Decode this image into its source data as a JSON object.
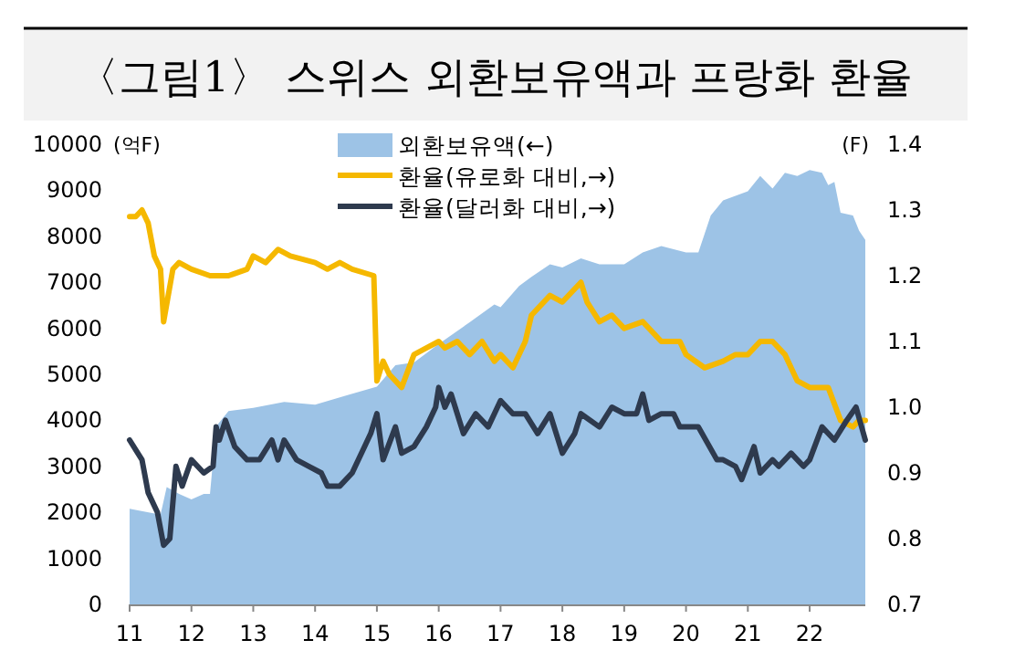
{
  "chart_data": {
    "type": "area",
    "title": "〈그림1〉 스위스 외환보유액과 프랑화 환율",
    "ylabel": "(억F)",
    "y2label": "(F)",
    "xlim": [
      11,
      22.9
    ],
    "xticks": [
      11,
      12,
      13,
      14,
      15,
      16,
      17,
      18,
      19,
      20,
      21,
      22
    ],
    "ylim": [
      0,
      10000
    ],
    "yticks": [
      0,
      1000,
      2000,
      3000,
      4000,
      5000,
      6000,
      7000,
      8000,
      9000,
      10000
    ],
    "y2lim": [
      0.7,
      1.4
    ],
    "y2ticks": [
      0.7,
      0.8,
      0.9,
      {
        "value": 1.0,
        "label": "1.0"
      },
      1.1,
      1.2,
      1.3,
      1.4
    ],
    "legend": "top",
    "grid": false,
    "series": [
      {
        "name": "외환보유액(←)",
        "color": "#9dc3e6",
        "x": [
          11.0,
          11.5,
          11.6,
          11.8,
          12.0,
          12.2,
          12.3,
          12.4,
          12.6,
          13.0,
          13.5,
          14.0,
          14.5,
          15.0,
          15.3,
          15.6,
          16.0,
          16.5,
          16.9,
          17.0,
          17.3,
          17.5,
          17.8,
          18.0,
          18.3,
          18.6,
          19.0,
          19.3,
          19.6,
          20.0,
          20.2,
          20.4,
          20.6,
          21.0,
          21.2,
          21.4,
          21.6,
          21.8,
          22.0,
          22.2,
          22.3,
          22.4,
          22.5,
          22.7,
          22.8,
          22.9
        ],
        "values": [
          2080,
          1950,
          2550,
          2400,
          2280,
          2400,
          2400,
          3870,
          4200,
          4270,
          4400,
          4340,
          4540,
          4730,
          5200,
          5260,
          5660,
          6130,
          6520,
          6460,
          6920,
          7120,
          7390,
          7320,
          7520,
          7390,
          7390,
          7650,
          7790,
          7650,
          7650,
          8450,
          8780,
          8980,
          9310,
          9040,
          9380,
          9310,
          9440,
          9380,
          9110,
          9180,
          8510,
          8450,
          8120,
          7920
        ]
      },
      {
        "name": "환율(유로화 대비,→)",
        "type": "line",
        "axis": "y2",
        "color": "#f5b800",
        "x": [
          11.0,
          11.1,
          11.2,
          11.3,
          11.4,
          11.5,
          11.55,
          11.7,
          11.8,
          12.0,
          12.3,
          12.6,
          12.9,
          13.0,
          13.2,
          13.4,
          13.6,
          14.0,
          14.2,
          14.4,
          14.6,
          14.95,
          15.0,
          15.1,
          15.2,
          15.4,
          15.6,
          15.8,
          16.0,
          16.1,
          16.3,
          16.5,
          16.7,
          16.9,
          17.0,
          17.2,
          17.4,
          17.5,
          17.8,
          18.0,
          18.3,
          18.4,
          18.6,
          18.8,
          19.0,
          19.3,
          19.6,
          19.9,
          20.0,
          20.3,
          20.6,
          20.8,
          21.0,
          21.2,
          21.4,
          21.6,
          21.8,
          22.0,
          22.3,
          22.5,
          22.7,
          22.8,
          22.9
        ],
        "values": [
          1.29,
          1.29,
          1.3,
          1.28,
          1.23,
          1.21,
          1.13,
          1.21,
          1.22,
          1.21,
          1.2,
          1.2,
          1.21,
          1.23,
          1.22,
          1.24,
          1.23,
          1.22,
          1.21,
          1.22,
          1.21,
          1.2,
          1.04,
          1.07,
          1.05,
          1.03,
          1.08,
          1.09,
          1.1,
          1.09,
          1.1,
          1.08,
          1.1,
          1.07,
          1.08,
          1.06,
          1.1,
          1.14,
          1.17,
          1.16,
          1.19,
          1.16,
          1.13,
          1.14,
          1.12,
          1.13,
          1.1,
          1.1,
          1.08,
          1.06,
          1.07,
          1.08,
          1.08,
          1.1,
          1.1,
          1.08,
          1.04,
          1.03,
          1.03,
          0.98,
          0.97,
          0.98,
          0.98
        ]
      },
      {
        "name": "환율(달러화 대비,→)",
        "type": "line",
        "axis": "y2",
        "color": "#2e3a4e",
        "x": [
          11.0,
          11.2,
          11.3,
          11.45,
          11.55,
          11.65,
          11.75,
          11.85,
          12.0,
          12.2,
          12.35,
          12.4,
          12.45,
          12.55,
          12.7,
          12.9,
          13.1,
          13.3,
          13.4,
          13.5,
          13.7,
          13.9,
          14.1,
          14.2,
          14.4,
          14.6,
          14.8,
          14.9,
          15.0,
          15.1,
          15.3,
          15.4,
          15.6,
          15.8,
          15.95,
          16.0,
          16.1,
          16.2,
          16.4,
          16.6,
          16.8,
          16.9,
          17.0,
          17.2,
          17.4,
          17.6,
          17.8,
          18.0,
          18.2,
          18.3,
          18.6,
          18.8,
          19.0,
          19.2,
          19.3,
          19.4,
          19.6,
          19.8,
          19.9,
          20.2,
          20.5,
          20.6,
          20.8,
          20.9,
          21.1,
          21.2,
          21.4,
          21.5,
          21.7,
          21.9,
          22.0,
          22.2,
          22.3,
          22.4,
          22.6,
          22.75,
          22.9
        ],
        "values": [
          0.95,
          0.92,
          0.87,
          0.84,
          0.79,
          0.8,
          0.91,
          0.88,
          0.92,
          0.9,
          0.91,
          0.97,
          0.95,
          0.98,
          0.94,
          0.92,
          0.92,
          0.95,
          0.92,
          0.95,
          0.92,
          0.91,
          0.9,
          0.88,
          0.88,
          0.9,
          0.94,
          0.96,
          0.99,
          0.92,
          0.97,
          0.93,
          0.94,
          0.97,
          1.0,
          1.03,
          1.0,
          1.02,
          0.96,
          0.99,
          0.97,
          0.99,
          1.01,
          0.99,
          0.99,
          0.96,
          0.99,
          0.93,
          0.96,
          0.99,
          0.97,
          1.0,
          0.99,
          0.99,
          1.02,
          0.98,
          0.99,
          0.99,
          0.97,
          0.97,
          0.92,
          0.92,
          0.91,
          0.89,
          0.94,
          0.9,
          0.92,
          0.91,
          0.93,
          0.91,
          0.92,
          0.97,
          0.96,
          0.95,
          0.98,
          1.0,
          0.95
        ]
      }
    ]
  }
}
